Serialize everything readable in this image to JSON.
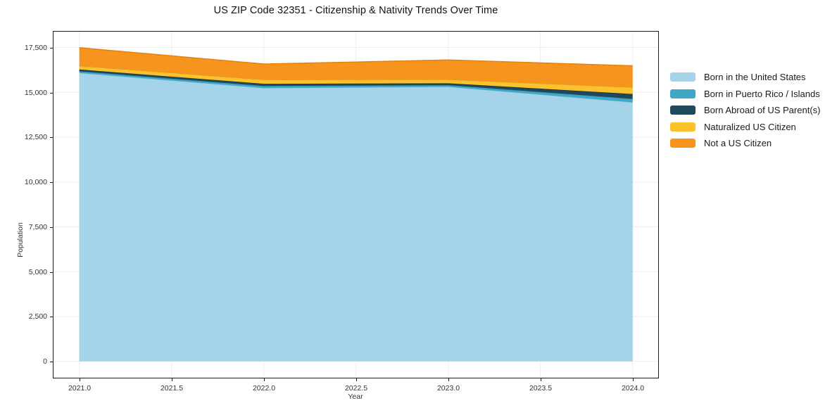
{
  "title": "US ZIP Code 32351 - Citizenship & Nativity Trends Over Time",
  "chart_data": {
    "type": "area",
    "stacked": true,
    "title": "US ZIP Code 32351 - Citizenship & Nativity Trends Over Time",
    "xlabel": "Year",
    "ylabel": "Population",
    "x": [
      2021,
      2022,
      2023,
      2024
    ],
    "series": [
      {
        "name": "Born in the United States",
        "color": "#a5d4ea",
        "edge": "#8cc2dd",
        "values": [
          16080,
          15240,
          15310,
          14440
        ]
      },
      {
        "name": "Born in Puerto Rico / Islands",
        "color": "#3fa8c6",
        "edge": "#2e8fae",
        "values": [
          90,
          115,
          90,
          195
        ]
      },
      {
        "name": "Born Abroad of US Parent(s)",
        "color": "#20485c",
        "edge": "#16323f",
        "values": [
          105,
          120,
          105,
          270
        ]
      },
      {
        "name": "Naturalized US Citizen",
        "color": "#fcc22d",
        "edge": "#d89e25",
        "values": [
          200,
          235,
          215,
          375
        ]
      },
      {
        "name": "Not a US Citizen",
        "color": "#f6941e",
        "edge": "#e27f12",
        "values": [
          1015,
          870,
          1085,
          1200
        ]
      }
    ],
    "totals": [
      17490,
      16580,
      16805,
      16480
    ],
    "x_ticks": [
      2021.0,
      2021.5,
      2022.0,
      2022.5,
      2023.0,
      2023.5,
      2024.0
    ],
    "x_tick_labels": [
      "2021.0",
      "2021.5",
      "2022.0",
      "2022.5",
      "2023.0",
      "2023.5",
      "2024.0"
    ],
    "y_ticks": [
      0,
      2500,
      5000,
      7500,
      10000,
      12500,
      15000,
      17500
    ],
    "y_tick_labels": [
      "0",
      "2,500",
      "5,000",
      "7,500",
      "10,000",
      "12,500",
      "15,000",
      "17,500"
    ],
    "ylim": [
      0,
      17500
    ],
    "grid": true,
    "grid_color": "#ededed",
    "legend_position": "right-outside"
  }
}
